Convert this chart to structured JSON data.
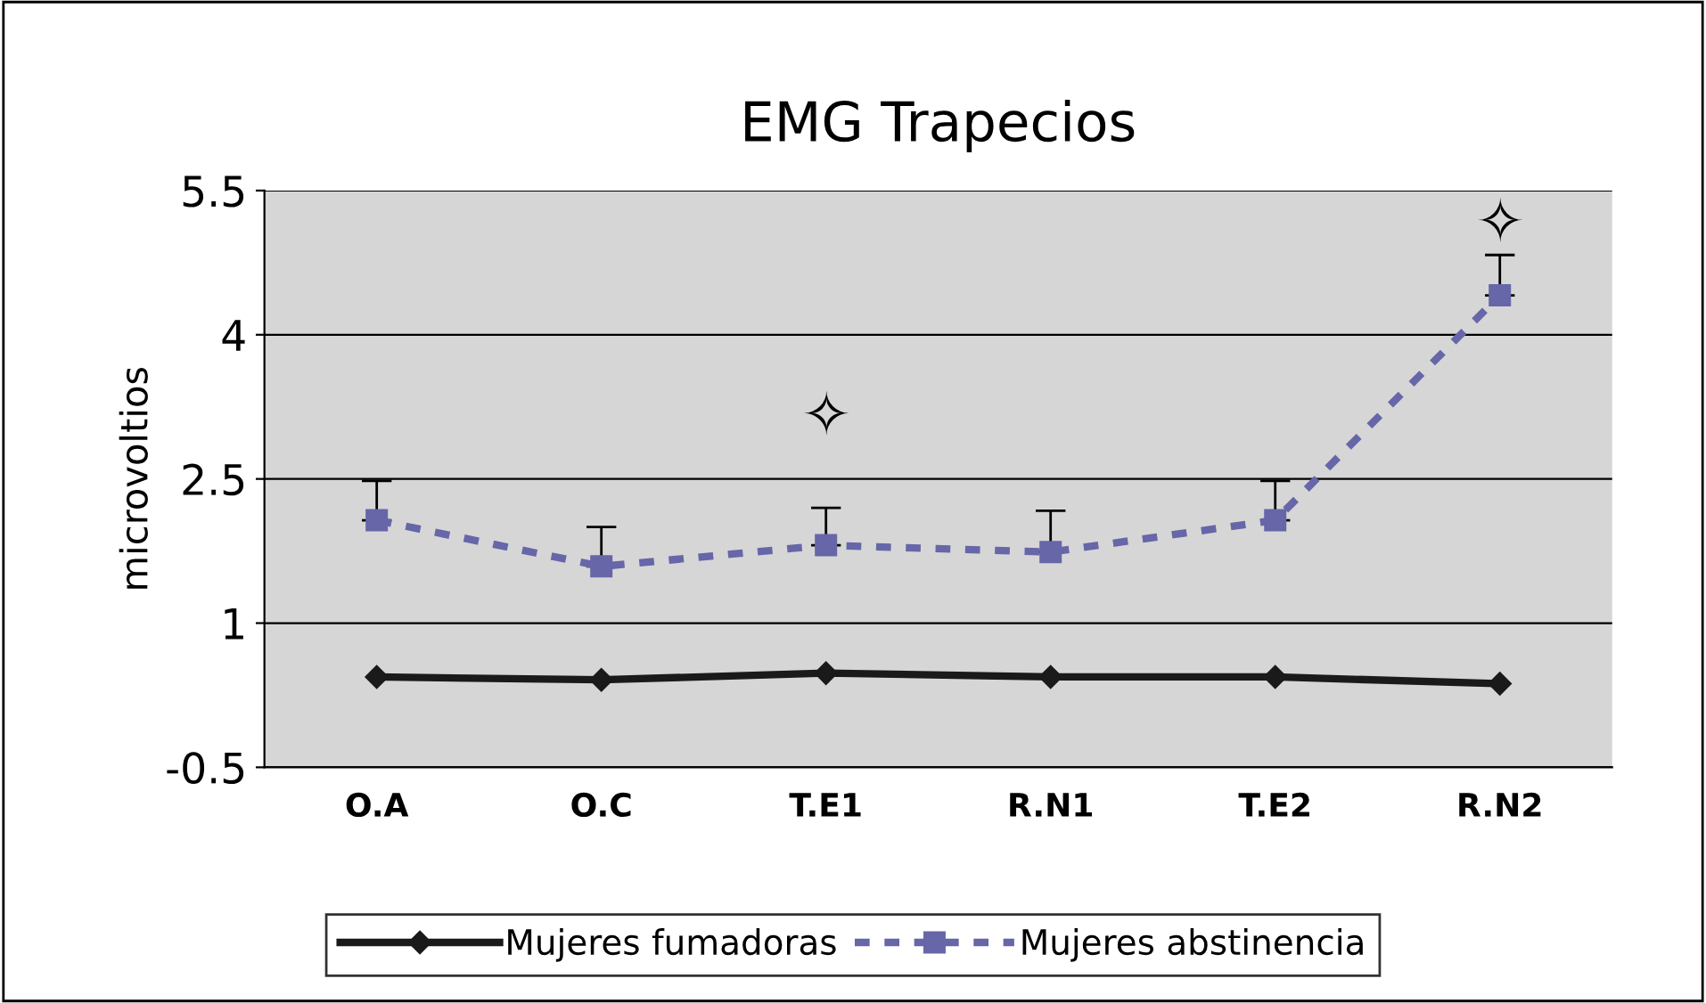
{
  "chart_data": {
    "type": "line",
    "title": "EMG Trapecios",
    "ylabel": "microvoltios",
    "categories": [
      "O.A",
      "O.C",
      "T.E1",
      "R.N1",
      "T.E2",
      "R.N2"
    ],
    "series": [
      {
        "name": "Mujeres fumadoras",
        "color": "#1a1a1a",
        "values": [
          0.44,
          0.41,
          0.48,
          0.44,
          0.44,
          0.37
        ],
        "marker": "diamond",
        "line_style": "solid"
      },
      {
        "name": "Mujeres abstinencia",
        "color": "#6666a8",
        "values": [
          2.07,
          1.59,
          1.81,
          1.74,
          2.07,
          4.41
        ],
        "errors": [
          [
            2.07,
            2.48
          ],
          [
            1.59,
            2.0
          ],
          [
            1.81,
            2.2
          ],
          [
            1.74,
            2.17
          ],
          [
            2.07,
            2.48
          ],
          [
            4.41,
            4.83
          ]
        ],
        "marker": "square",
        "line_style": "dashed"
      }
    ],
    "annotations": [
      "✧",
      "✧"
    ],
    "ylim": [
      -0.5,
      5.5
    ],
    "yticks": [
      -0.5,
      1,
      2.5,
      4,
      5.5
    ],
    "grid": "y",
    "legend": "bottom"
  }
}
